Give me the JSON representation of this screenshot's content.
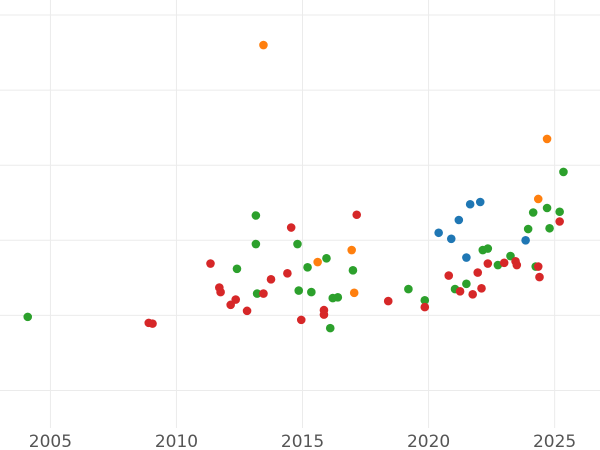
{
  "chart_data": {
    "type": "scatter",
    "title": "",
    "xlabel": "",
    "ylabel": "",
    "xlim": [
      2003.0,
      2026.8
    ],
    "ylim": [
      -1.5,
      4.2
    ],
    "x_ticks": [
      2005,
      2010,
      2015,
      2020,
      2025
    ],
    "x_tick_labels": [
      "2005",
      "2010",
      "2015",
      "2020",
      "2025"
    ],
    "y_grid": [
      -1,
      0,
      1,
      2,
      3,
      4
    ],
    "grid": true,
    "legend": "none",
    "series": [
      {
        "color": "#2ca02c",
        "points": [
          [
            2004.1,
            -0.02
          ],
          [
            2012.4,
            0.62
          ],
          [
            2013.15,
            1.33
          ],
          [
            2013.15,
            0.95
          ],
          [
            2013.2,
            0.29
          ],
          [
            2014.8,
            0.95
          ],
          [
            2014.85,
            0.33
          ],
          [
            2015.2,
            0.64
          ],
          [
            2015.35,
            0.31
          ],
          [
            2015.95,
            0.76
          ],
          [
            2016.1,
            -0.17
          ],
          [
            2016.2,
            0.23
          ],
          [
            2016.4,
            0.24
          ],
          [
            2017.0,
            0.6
          ],
          [
            2019.2,
            0.35
          ],
          [
            2019.85,
            0.2
          ],
          [
            2021.05,
            0.35
          ],
          [
            2021.5,
            0.42
          ],
          [
            2022.15,
            0.87
          ],
          [
            2022.35,
            0.89
          ],
          [
            2022.75,
            0.67
          ],
          [
            2023.25,
            0.79
          ],
          [
            2023.95,
            1.15
          ],
          [
            2024.15,
            1.37
          ],
          [
            2024.25,
            0.65
          ],
          [
            2024.7,
            1.43
          ],
          [
            2024.8,
            1.16
          ],
          [
            2025.2,
            1.38
          ],
          [
            2025.35,
            1.91
          ]
        ]
      },
      {
        "color": "#d62728",
        "points": [
          [
            2008.9,
            -0.1
          ],
          [
            2009.05,
            -0.11
          ],
          [
            2011.35,
            0.69
          ],
          [
            2011.7,
            0.37
          ],
          [
            2011.75,
            0.31
          ],
          [
            2012.15,
            0.14
          ],
          [
            2012.35,
            0.21
          ],
          [
            2012.8,
            0.06
          ],
          [
            2013.45,
            0.29
          ],
          [
            2013.75,
            0.48
          ],
          [
            2014.4,
            0.56
          ],
          [
            2014.55,
            1.17
          ],
          [
            2014.95,
            -0.06
          ],
          [
            2015.85,
            0.07
          ],
          [
            2015.85,
            0.01
          ],
          [
            2017.15,
            1.34
          ],
          [
            2018.4,
            0.19
          ],
          [
            2019.85,
            0.11
          ],
          [
            2020.8,
            0.53
          ],
          [
            2021.25,
            0.32
          ],
          [
            2021.75,
            0.28
          ],
          [
            2021.95,
            0.57
          ],
          [
            2022.1,
            0.36
          ],
          [
            2022.35,
            0.69
          ],
          [
            2023.0,
            0.7
          ],
          [
            2023.45,
            0.72
          ],
          [
            2023.5,
            0.67
          ],
          [
            2024.35,
            0.65
          ],
          [
            2024.4,
            0.51
          ],
          [
            2025.2,
            1.25
          ]
        ]
      },
      {
        "color": "#ff7f0e",
        "points": [
          [
            2013.45,
            3.6
          ],
          [
            2015.6,
            0.71
          ],
          [
            2016.95,
            0.87
          ],
          [
            2017.05,
            0.3
          ],
          [
            2024.35,
            1.55
          ],
          [
            2024.7,
            2.35
          ]
        ]
      },
      {
        "color": "#1f77b4",
        "points": [
          [
            2020.4,
            1.1
          ],
          [
            2020.9,
            1.02
          ],
          [
            2021.2,
            1.27
          ],
          [
            2021.5,
            0.77
          ],
          [
            2021.65,
            1.48
          ],
          [
            2022.05,
            1.51
          ],
          [
            2023.85,
            1.0
          ]
        ]
      }
    ]
  }
}
